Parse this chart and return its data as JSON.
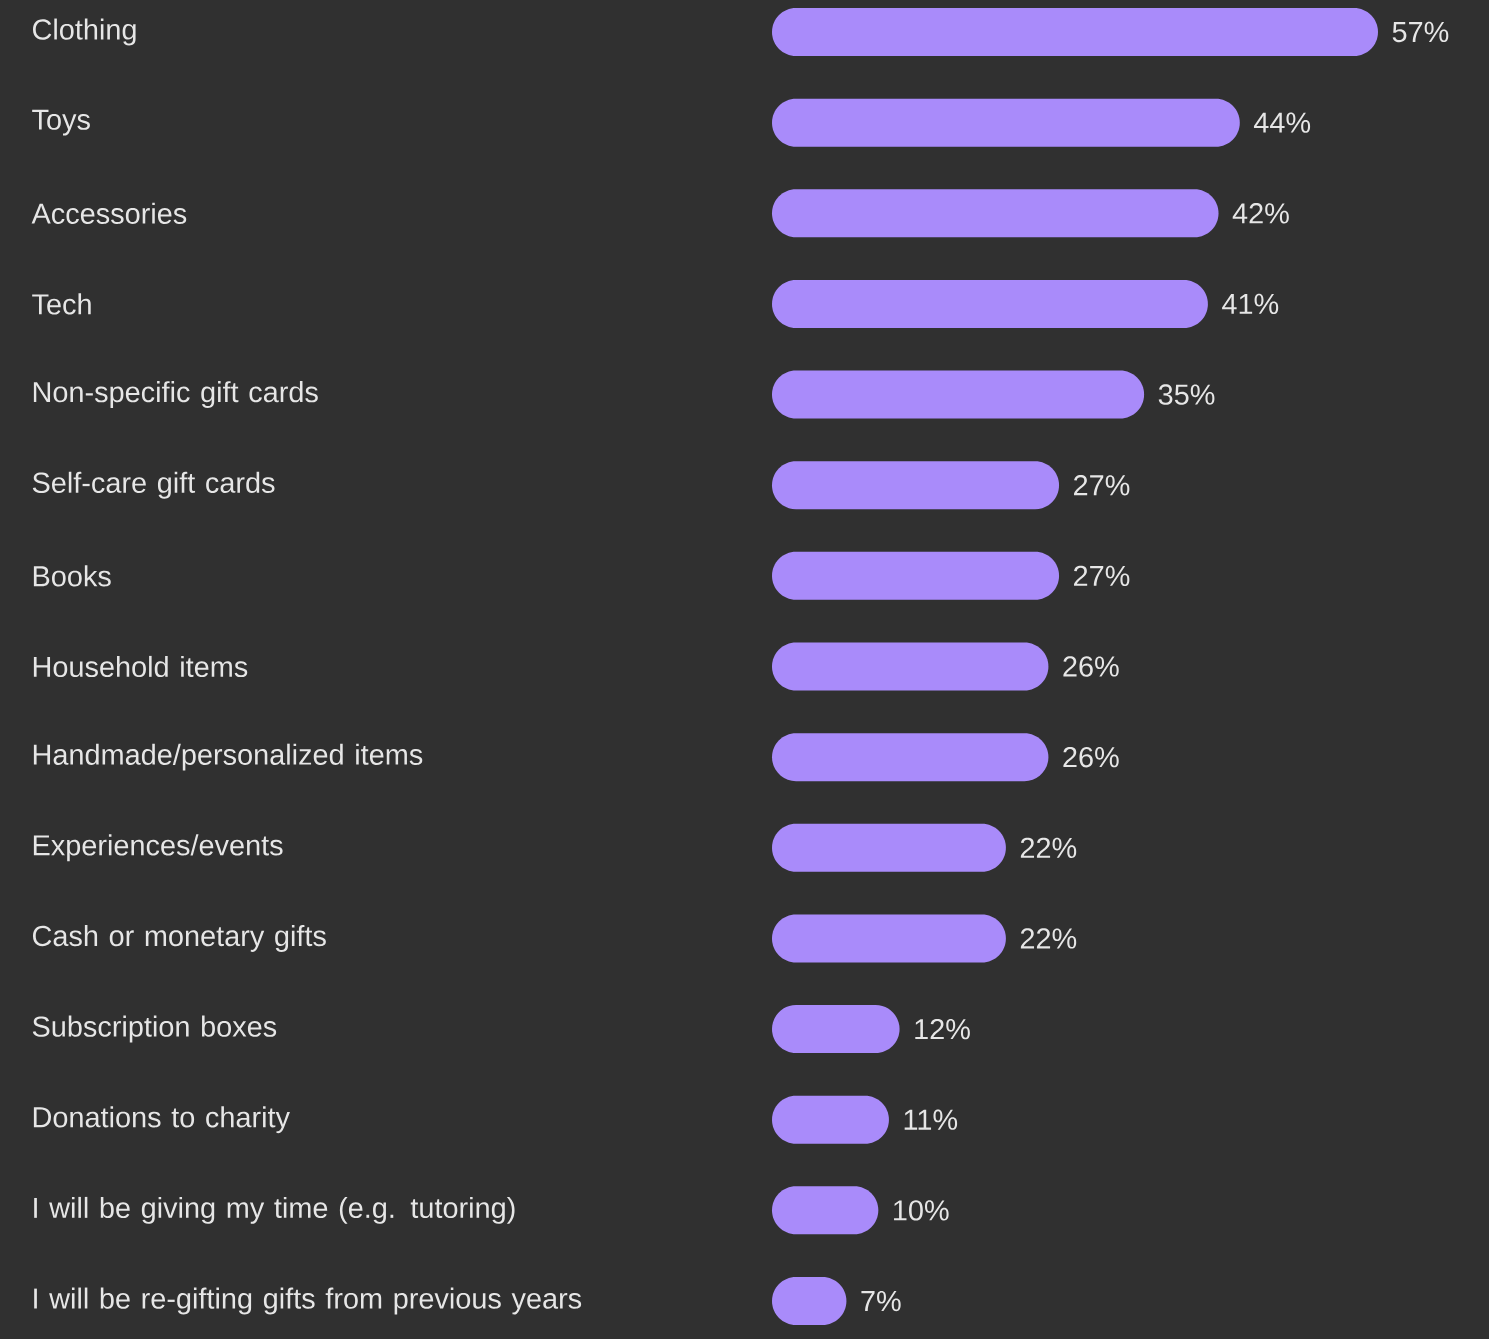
{
  "chart_data": {
    "type": "bar",
    "orientation": "horizontal",
    "color": "#a98bfa",
    "categories": [
      "Clothing",
      "Toys",
      "Accessories",
      "Tech",
      "Non-specific gift cards",
      "Self-care gift cards",
      "Books",
      "Household items",
      "Handmade/personalized items",
      "Experiences/events",
      "Cash or monetary gifts",
      "Subscription boxes",
      "Donations to charity",
      "I will be giving my time (e.g. tutoring)",
      "I will be re-gifting gifts from previous years"
    ],
    "values": [
      57,
      44,
      42,
      41,
      35,
      27,
      27,
      26,
      26,
      22,
      22,
      12,
      11,
      10,
      7
    ],
    "value_labels": [
      "57%",
      "44%",
      "42%",
      "41%",
      "35%",
      "27%",
      "27%",
      "26%",
      "26%",
      "22%",
      "22%",
      "12%",
      "11%",
      "10%",
      "7%"
    ]
  }
}
